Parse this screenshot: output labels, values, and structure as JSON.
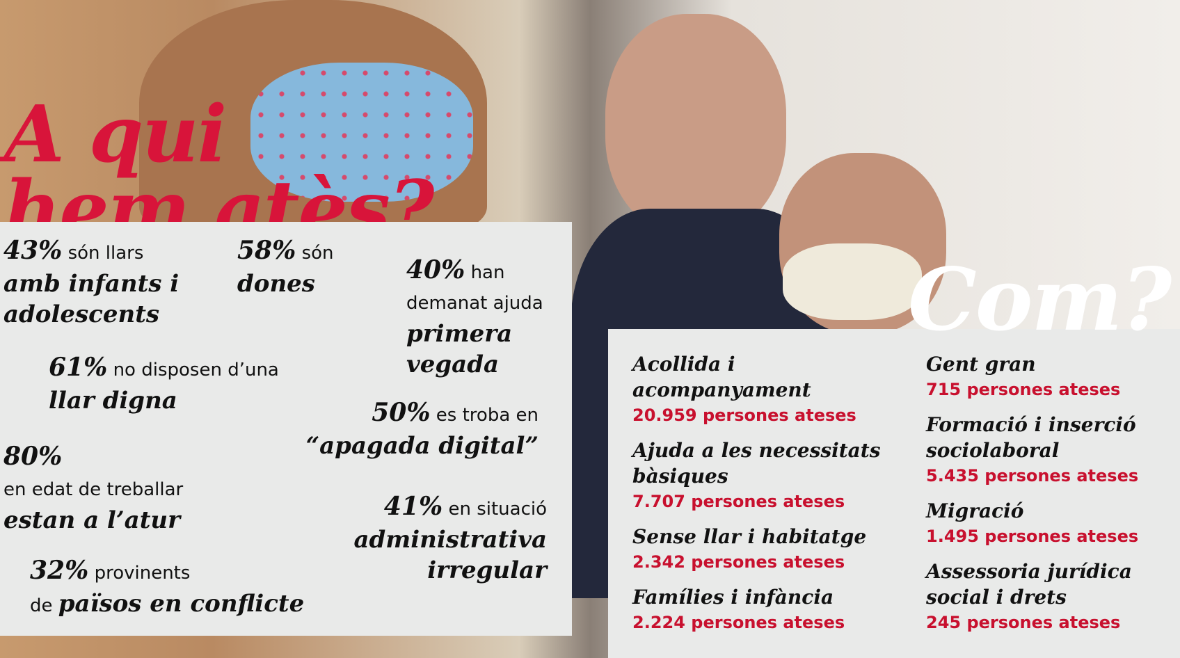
{
  "header": {
    "title_line1": "A qui",
    "title_line2": "hem atès?"
  },
  "stats": [
    {
      "value": "43%",
      "text": "són llars",
      "emphasis": "amb infants i adolescents"
    },
    {
      "value": "58%",
      "text": "són",
      "emphasis": "dones"
    },
    {
      "value": "40%",
      "text": "han demanat ajuda",
      "emphasis": "primera vegada"
    },
    {
      "value": "61%",
      "text": "no disposen d’una",
      "emphasis": "llar digna"
    },
    {
      "value": "50%",
      "text": "es troba en",
      "emphasis": "“apagada digital”"
    },
    {
      "value": "80%",
      "text": "en edat de treballar",
      "emphasis": "estan a l’atur"
    },
    {
      "value": "41%",
      "text": "en situació",
      "emphasis": "administrativa irregular"
    },
    {
      "value": "32%",
      "text": "provinents",
      "lead": "de",
      "emphasis": "països en conflicte"
    }
  ],
  "services_title": "Com?",
  "services": [
    {
      "name": "Acollida i acompanyament",
      "count": "20.959 persones ateses"
    },
    {
      "name": "Ajuda a les necessitats bàsiques",
      "count": "7.707 persones ateses"
    },
    {
      "name": "Sense llar i habitatge",
      "count": "2.342 persones ateses"
    },
    {
      "name": "Famílies i infància",
      "count": "2.224 persones ateses"
    },
    {
      "name": "Gent gran",
      "count": "715 persones ateses"
    },
    {
      "name": "Formació i inserció sociolaboral",
      "count": "5.435 persones ateses"
    },
    {
      "name": "Migració",
      "count": "1.495 persones ateses"
    },
    {
      "name": "Assessoria jurídica social i drets",
      "count": "245 persones ateses"
    }
  ]
}
